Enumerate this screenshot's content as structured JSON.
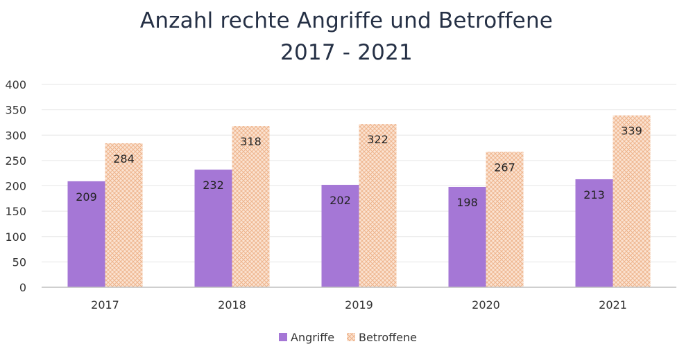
{
  "chart_data": {
    "type": "bar",
    "title_lines": [
      "Anzahl rechte Angriffe und Betroffene",
      "2017 - 2021"
    ],
    "categories": [
      "2017",
      "2018",
      "2019",
      "2020",
      "2021"
    ],
    "series": [
      {
        "name": "Angriffe",
        "values": [
          209,
          232,
          202,
          198,
          213
        ],
        "color": "#a577d6"
      },
      {
        "name": "Betroffene",
        "values": [
          284,
          318,
          322,
          267,
          339
        ],
        "color": "#f4c2a0"
      }
    ],
    "xlabel": "",
    "ylabel": "",
    "ylim": [
      0,
      400
    ],
    "yticks": [
      0,
      50,
      100,
      150,
      200,
      250,
      300,
      350,
      400
    ],
    "grid": true,
    "legend_position": "bottom"
  }
}
